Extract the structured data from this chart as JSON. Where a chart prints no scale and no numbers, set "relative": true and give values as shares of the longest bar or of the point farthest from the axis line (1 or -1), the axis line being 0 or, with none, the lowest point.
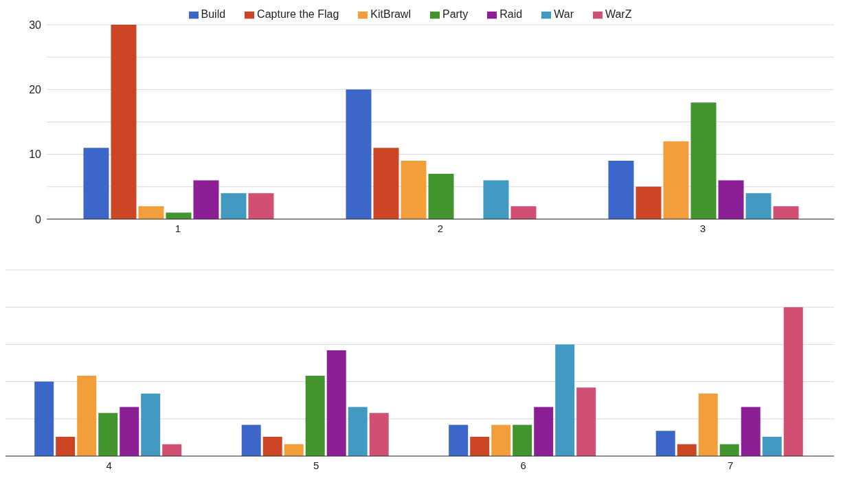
{
  "chart_data": [
    {
      "type": "bar",
      "categories": [
        "1",
        "2",
        "3"
      ],
      "ylim": [
        0,
        30
      ],
      "yticks": [
        0,
        {
          "value": 5,
          "label": null
        },
        10,
        {
          "value": 15,
          "label": null
        },
        20,
        {
          "value": 25,
          "label": null
        },
        30
      ],
      "grid": "y",
      "legend": "top",
      "series": [
        {
          "name": "Build",
          "color": "#3c66c8",
          "values": [
            11,
            20,
            9
          ]
        },
        {
          "name": "Capture the Flag",
          "color": "#cc4626",
          "values": [
            30,
            11,
            5
          ]
        },
        {
          "name": "KitBrawl",
          "color": "#f29e3a",
          "values": [
            2,
            9,
            12
          ]
        },
        {
          "name": "Party",
          "color": "#43942f",
          "values": [
            1,
            7,
            18
          ]
        },
        {
          "name": "Raid",
          "color": "#8d1f96",
          "values": [
            6,
            0,
            6
          ]
        },
        {
          "name": "War",
          "color": "#4299c2",
          "values": [
            4,
            6,
            4
          ]
        },
        {
          "name": "WarZ",
          "color": "#d04f72",
          "values": [
            4,
            2,
            2
          ]
        }
      ]
    },
    {
      "type": "bar",
      "categories": [
        "4",
        "5",
        "6",
        "7"
      ],
      "relative": true,
      "grid": "y",
      "tick_labels": "x",
      "series": [
        {
          "color": "#3c66c8",
          "values": [
            0.5,
            0.21,
            0.21,
            0.17
          ]
        },
        {
          "color": "#cc4626",
          "values": [
            0.13,
            0.13,
            0.13,
            0.08
          ]
        },
        {
          "color": "#f29e3a",
          "values": [
            0.54,
            0.08,
            0.21,
            0.42
          ]
        },
        {
          "color": "#43942f",
          "values": [
            0.29,
            0.54,
            0.21,
            0.08
          ]
        },
        {
          "color": "#8d1f96",
          "values": [
            0.33,
            0.71,
            0.33,
            0.33
          ]
        },
        {
          "color": "#4299c2",
          "values": [
            0.42,
            0.33,
            0.75,
            0.13
          ]
        },
        {
          "color": "#d04f72",
          "values": [
            0.08,
            0.29,
            0.46,
            1
          ]
        }
      ]
    }
  ]
}
